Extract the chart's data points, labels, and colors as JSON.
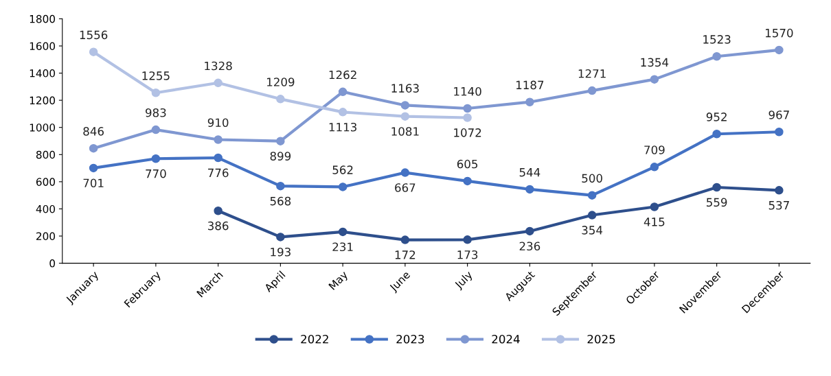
{
  "chart_data": {
    "type": "line",
    "categories": [
      "January",
      "February",
      "March",
      "April",
      "May",
      "June",
      "July",
      "August",
      "September",
      "October",
      "November",
      "December"
    ],
    "series": [
      {
        "name": "2022",
        "color": "#2e4f8c",
        "values": [
          null,
          null,
          386,
          193,
          231,
          172,
          173,
          236,
          354,
          415,
          559,
          537
        ]
      },
      {
        "name": "2023",
        "color": "#4472c4",
        "values": [
          701,
          770,
          776,
          568,
          562,
          667,
          605,
          544,
          500,
          709,
          952,
          967
        ]
      },
      {
        "name": "2024",
        "color": "#7f97d1",
        "values": [
          846,
          983,
          910,
          899,
          1262,
          1163,
          1140,
          1187,
          1271,
          1354,
          1523,
          1570
        ]
      },
      {
        "name": "2025",
        "color": "#b2c1e4",
        "values": [
          1556,
          1255,
          1328,
          1209,
          1113,
          1081,
          1072,
          null,
          null,
          null,
          null,
          null
        ]
      }
    ],
    "ylim": [
      0,
      1800
    ],
    "yticks": [
      0,
      200,
      400,
      600,
      800,
      1000,
      1200,
      1400,
      1600,
      1800
    ],
    "grid": false,
    "legend": "bottom",
    "marker": "circle",
    "line_style": "solid",
    "data_labels": true
  }
}
